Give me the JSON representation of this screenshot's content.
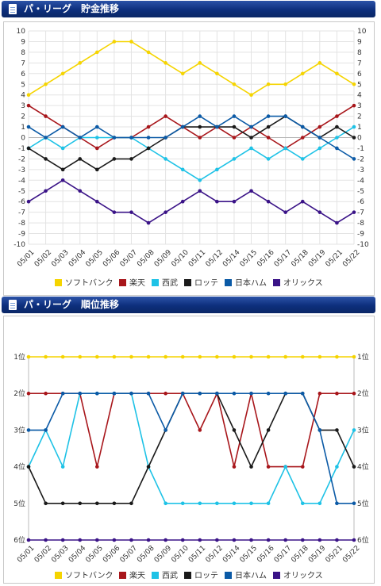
{
  "panels": [
    {
      "title": "パ・リーグ　貯金推移"
    },
    {
      "title": "パ・リーグ　順位推移"
    }
  ],
  "dates": [
    "05/01",
    "05/02",
    "05/03",
    "05/04",
    "05/05",
    "05/06",
    "05/07",
    "05/08",
    "05/09",
    "05/10",
    "05/11",
    "05/12",
    "05/14",
    "05/15",
    "05/16",
    "05/17",
    "05/18",
    "05/19",
    "05/21",
    "05/22"
  ],
  "chart_data": [
    {
      "type": "line",
      "title": "パ・リーグ　貯金推移",
      "x": [
        "05/01",
        "05/02",
        "05/03",
        "05/04",
        "05/05",
        "05/06",
        "05/07",
        "05/08",
        "05/09",
        "05/10",
        "05/11",
        "05/12",
        "05/14",
        "05/15",
        "05/16",
        "05/17",
        "05/18",
        "05/19",
        "05/21",
        "05/22"
      ],
      "ylim": [
        -10,
        10
      ],
      "yticks": [
        10,
        9,
        8,
        7,
        6,
        5,
        4,
        3,
        2,
        1,
        0,
        -1,
        -2,
        -3,
        -4,
        -5,
        -6,
        -7,
        -8,
        -9,
        -10
      ],
      "grid": true,
      "legend": "bottom",
      "series": [
        {
          "name": "ソフトバンク",
          "color": "#f5d400",
          "values": [
            4,
            5,
            6,
            7,
            8,
            9,
            9,
            8,
            7,
            6,
            7,
            6,
            5,
            4,
            5,
            5,
            6,
            7,
            6,
            5
          ]
        },
        {
          "name": "楽天",
          "color": "#a8161b",
          "values": [
            3,
            2,
            1,
            0,
            -1,
            0,
            0,
            1,
            2,
            1,
            0,
            1,
            0,
            1,
            0,
            -1,
            0,
            1,
            2,
            3
          ]
        },
        {
          "name": "西武",
          "color": "#1ec2e6",
          "values": [
            -1,
            0,
            -1,
            0,
            0,
            0,
            0,
            -1,
            -2,
            -3,
            -4,
            -3,
            -2,
            -1,
            -2,
            -1,
            -2,
            -1,
            0,
            1
          ]
        },
        {
          "name": "ロッテ",
          "color": "#1a1a1a",
          "values": [
            -1,
            -2,
            -3,
            -2,
            -3,
            -2,
            -2,
            -1,
            0,
            1,
            1,
            1,
            1,
            0,
            1,
            2,
            1,
            0,
            1,
            0
          ]
        },
        {
          "name": "日本ハム",
          "color": "#0b5aa6",
          "values": [
            1,
            0,
            1,
            0,
            1,
            0,
            0,
            0,
            0,
            1,
            2,
            1,
            2,
            1,
            2,
            2,
            1,
            0,
            -1,
            -2
          ]
        },
        {
          "name": "オリックス",
          "color": "#3a1387",
          "values": [
            -6,
            -5,
            -4,
            -5,
            -6,
            -7,
            -7,
            -8,
            -7,
            -6,
            -5,
            -6,
            -6,
            -5,
            -6,
            -7,
            -6,
            -7,
            -8,
            -7
          ]
        }
      ]
    },
    {
      "type": "line",
      "title": "パ・リーグ　順位推移",
      "x": [
        "05/01",
        "05/02",
        "05/03",
        "05/04",
        "05/05",
        "05/06",
        "05/07",
        "05/08",
        "05/09",
        "05/10",
        "05/11",
        "05/12",
        "05/14",
        "05/15",
        "05/16",
        "05/17",
        "05/18",
        "05/19",
        "05/21",
        "05/22"
      ],
      "ylim": [
        1,
        6
      ],
      "yticks": [
        "1位",
        "2位",
        "3位",
        "4位",
        "5位",
        "6位"
      ],
      "grid": false,
      "legend": "bottom",
      "series": [
        {
          "name": "ソフトバンク",
          "color": "#f5d400",
          "values": [
            1,
            1,
            1,
            1,
            1,
            1,
            1,
            1,
            1,
            1,
            1,
            1,
            1,
            1,
            1,
            1,
            1,
            1,
            1,
            1
          ]
        },
        {
          "name": "楽天",
          "color": "#a8161b",
          "values": [
            2,
            2,
            2,
            2,
            4,
            2,
            2,
            2,
            2,
            2,
            3,
            2,
            4,
            2,
            4,
            4,
            4,
            2,
            2,
            2
          ]
        },
        {
          "name": "西武",
          "color": "#1ec2e6",
          "values": [
            4,
            3,
            4,
            2,
            2,
            2,
            2,
            4,
            5,
            5,
            5,
            5,
            5,
            5,
            5,
            4,
            5,
            5,
            4,
            3
          ]
        },
        {
          "name": "ロッテ",
          "color": "#1a1a1a",
          "values": [
            4,
            5,
            5,
            5,
            5,
            5,
            5,
            4,
            3,
            2,
            2,
            2,
            3,
            4,
            3,
            2,
            2,
            3,
            3,
            4
          ]
        },
        {
          "name": "日本ハム",
          "color": "#0b5aa6",
          "values": [
            3,
            3,
            2,
            2,
            2,
            2,
            2,
            2,
            3,
            2,
            2,
            2,
            2,
            2,
            2,
            2,
            2,
            3,
            5,
            5
          ]
        },
        {
          "name": "オリックス",
          "color": "#3a1387",
          "values": [
            6,
            6,
            6,
            6,
            6,
            6,
            6,
            6,
            6,
            6,
            6,
            6,
            6,
            6,
            6,
            6,
            6,
            6,
            6,
            6
          ]
        }
      ]
    }
  ]
}
